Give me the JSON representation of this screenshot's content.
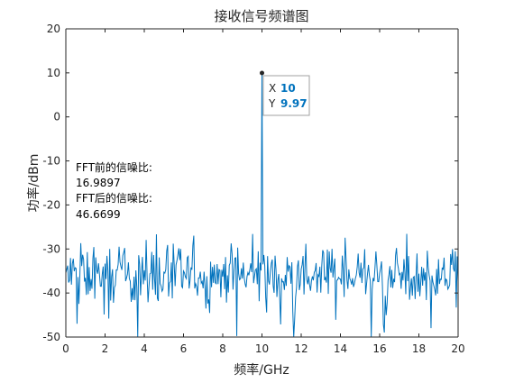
{
  "chart_data": {
    "type": "line",
    "title": "接收信号频谱图",
    "xlabel": "频率/GHz",
    "ylabel": "功率/dBm",
    "xlim": [
      0,
      20
    ],
    "ylim": [
      -50,
      20
    ],
    "x_ticks": [
      "0",
      "2",
      "4",
      "6",
      "8",
      "10",
      "12",
      "14",
      "16",
      "18",
      "20"
    ],
    "y_ticks": [
      "20",
      "10",
      "0",
      "-10",
      "-20",
      "-30",
      "-40",
      "-50"
    ],
    "grid": false,
    "line_color": "#0072BD",
    "peak": {
      "x": 10,
      "y": 9.97
    },
    "noise_floor_mean": -36,
    "noise_floor_range": [
      -50,
      -25
    ],
    "datatip": {
      "x_label": "X",
      "x_value": "10",
      "y_label": "Y",
      "y_value": "9.97"
    },
    "annotations": [
      "FFT前的信噪比:",
      "16.9897",
      "FFT后的信噪比:",
      "46.6699"
    ]
  }
}
